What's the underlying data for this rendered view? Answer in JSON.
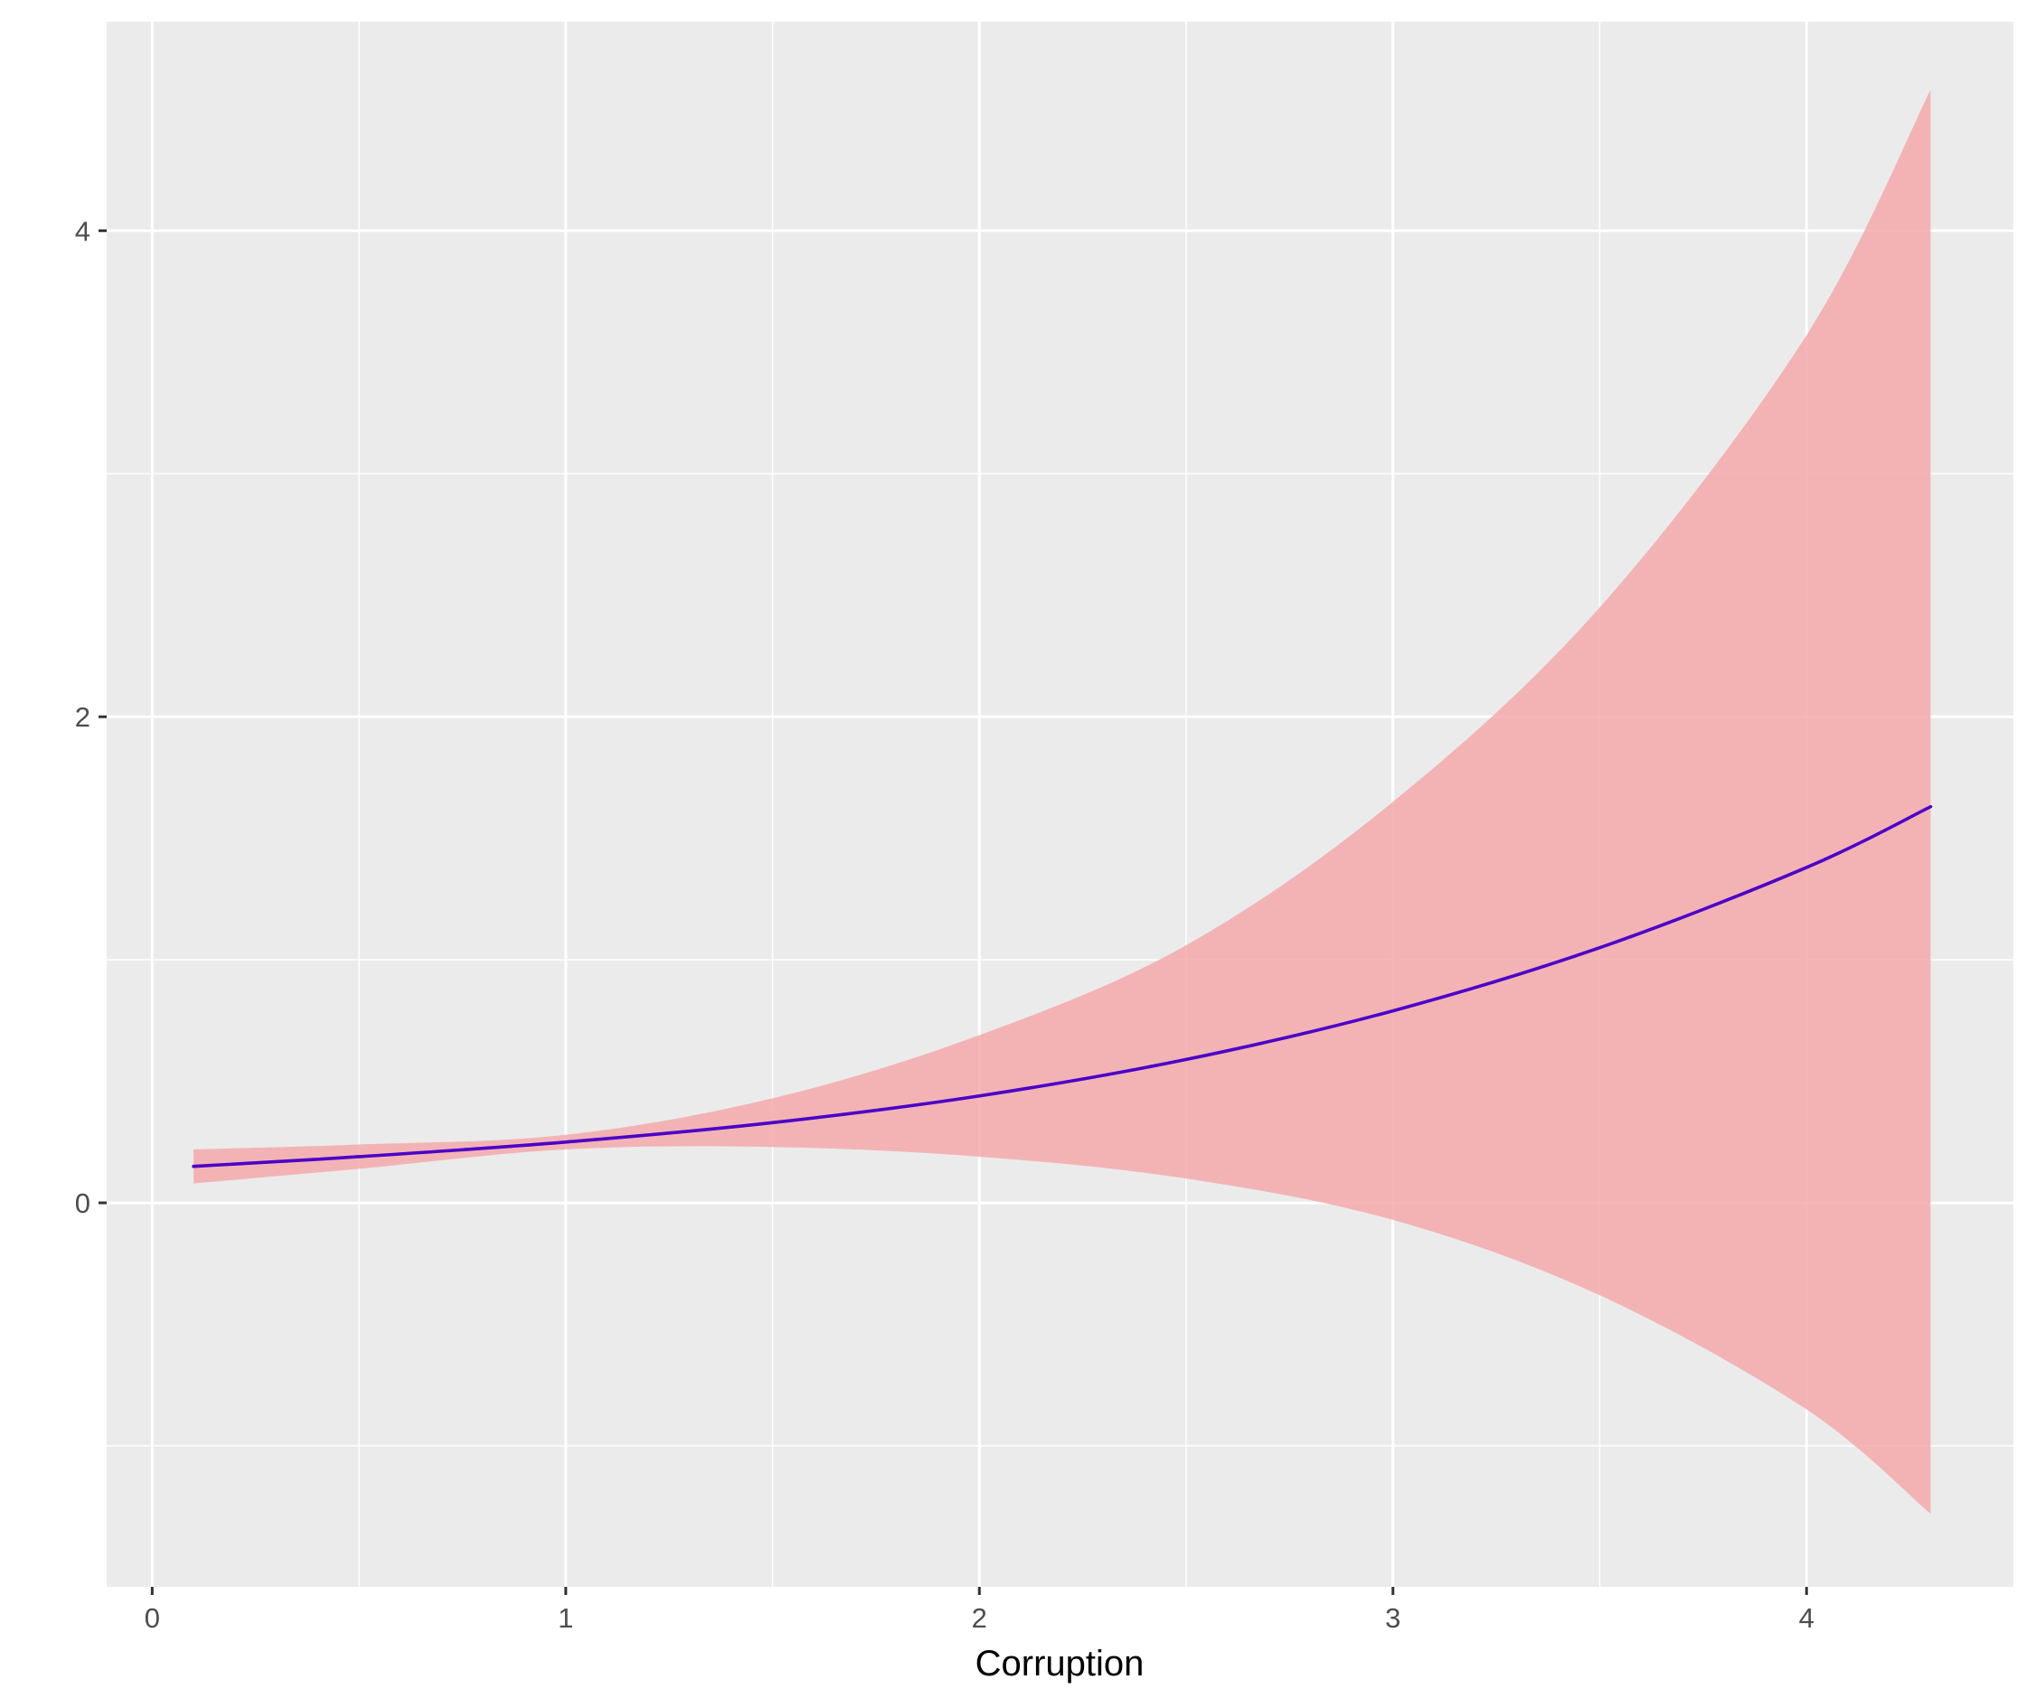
{
  "chart_data": {
    "type": "line",
    "title": "",
    "xlabel": "Corruption",
    "ylabel": "",
    "xlim": [
      -0.11,
      4.5
    ],
    "ylim": [
      -1.58,
      4.86
    ],
    "x_ticks": [
      0,
      1,
      2,
      3,
      4
    ],
    "x_tick_labels": [
      "0",
      "1",
      "2",
      "3",
      "4"
    ],
    "x_minor_ticks": [
      0.5,
      1.5,
      2.5,
      3.5
    ],
    "y_ticks": [
      0,
      2,
      4
    ],
    "y_tick_labels": [
      "0",
      "2",
      "4"
    ],
    "y_minor_ticks": [
      -1,
      1,
      3
    ],
    "grid": true,
    "legend": "none",
    "colors": {
      "panel_background": "#ebebeb",
      "grid": "#ffffff",
      "line": "#4b00c8",
      "ribbon": "#f4a6a8"
    },
    "series": [
      {
        "type": "line",
        "x": [
          0.1,
          0.5,
          1.0,
          1.5,
          2.0,
          2.5,
          3.0,
          3.5,
          4.0,
          4.3
        ],
        "y": [
          0.15,
          0.19,
          0.25,
          0.33,
          0.44,
          0.59,
          0.79,
          1.05,
          1.38,
          1.63
        ]
      },
      {
        "type": "ribbon",
        "x": [
          0.1,
          0.5,
          1.0,
          1.5,
          2.0,
          2.5,
          3.0,
          3.5,
          4.0,
          4.3
        ],
        "ymin": [
          0.08,
          0.14,
          0.22,
          0.23,
          0.19,
          0.1,
          -0.07,
          -0.38,
          -0.85,
          -1.28
        ],
        "ymax": [
          0.22,
          0.24,
          0.28,
          0.43,
          0.69,
          1.06,
          1.65,
          2.45,
          3.57,
          4.58
        ]
      }
    ]
  }
}
